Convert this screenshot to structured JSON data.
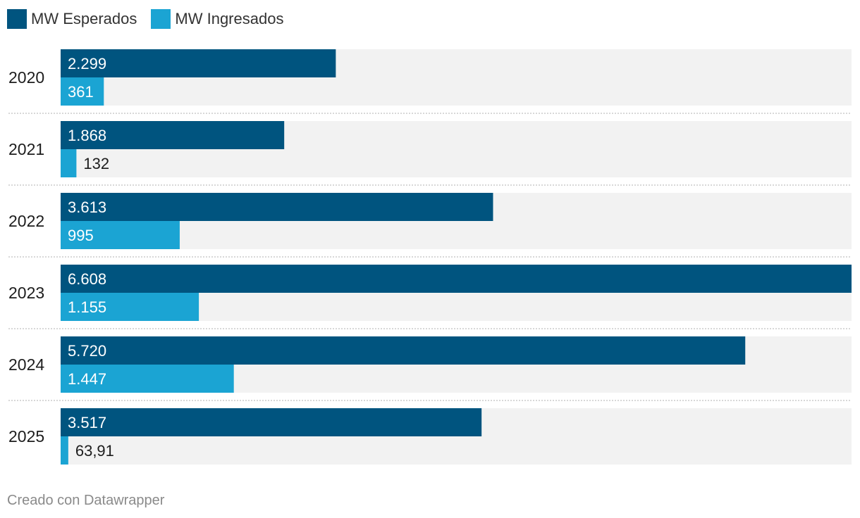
{
  "chart_data": {
    "type": "bar",
    "orientation": "horizontal",
    "categories": [
      "2020",
      "2021",
      "2022",
      "2023",
      "2024",
      "2025"
    ],
    "series": [
      {
        "name": "MW Esperados",
        "color": "#00547f",
        "values": [
          2299,
          1868,
          3613,
          6608,
          5720,
          3517
        ],
        "labels": [
          "2.299",
          "1.868",
          "3.613",
          "6.608",
          "5.720",
          "3.517"
        ]
      },
      {
        "name": "MW Ingresados",
        "color": "#1ba4d3",
        "values": [
          361,
          132,
          995,
          1155,
          1447,
          63.91
        ],
        "labels": [
          "361",
          "132",
          "995",
          "1.155",
          "1.447",
          "63,91"
        ]
      }
    ],
    "xlim": [
      0,
      6608
    ],
    "legend": "top-left",
    "grid": false
  },
  "colors": {
    "background_track": "#f2f2f2",
    "separator": "#cccccc"
  },
  "footer": {
    "credit": "Creado con Datawrapper"
  }
}
